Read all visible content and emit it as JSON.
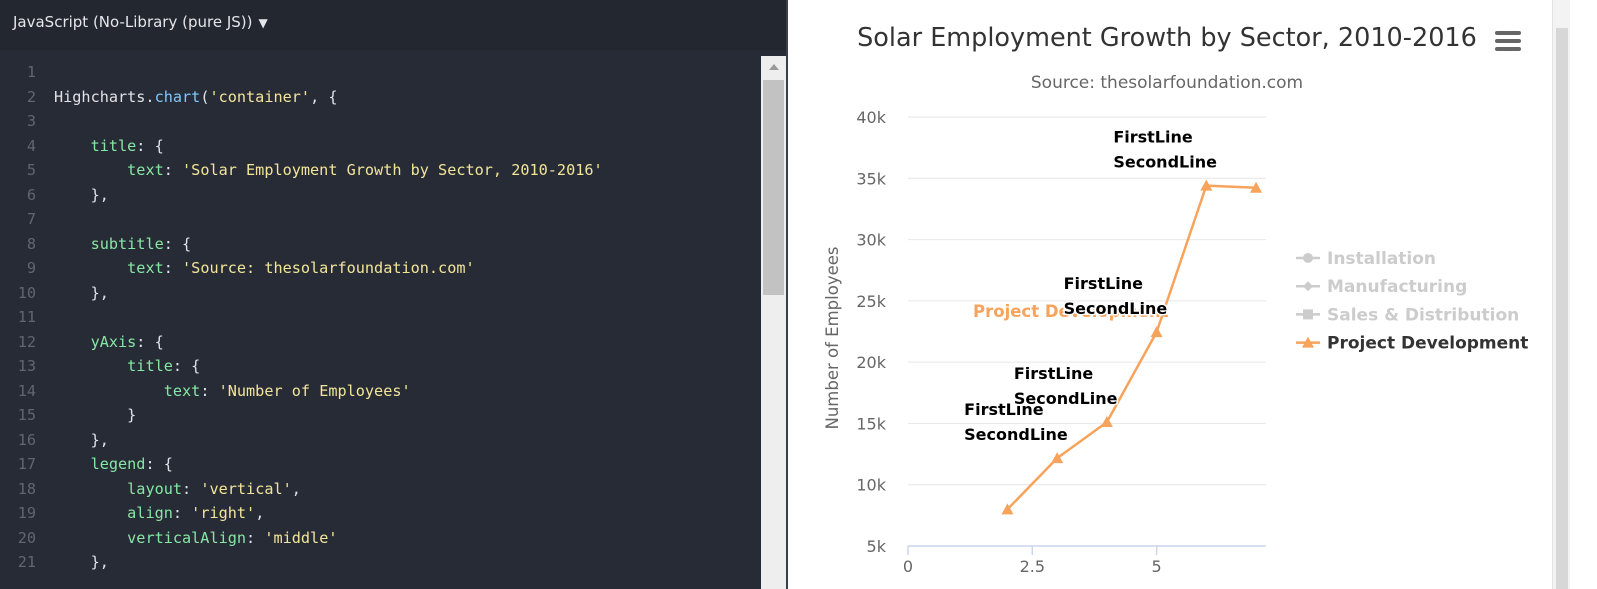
{
  "editor": {
    "language_label": "JavaScript (No-Library (pure JS))",
    "lines": [
      [],
      [
        [
          "pl",
          "Highcharts."
        ],
        [
          "fn",
          "chart"
        ],
        [
          "pl",
          "("
        ],
        [
          "str",
          "'container'"
        ],
        [
          "pl",
          ", {"
        ]
      ],
      [],
      [
        [
          "pl",
          "    "
        ],
        [
          "key",
          "title"
        ],
        [
          "pl",
          ": {"
        ]
      ],
      [
        [
          "pl",
          "        "
        ],
        [
          "key",
          "text"
        ],
        [
          "pl",
          ": "
        ],
        [
          "str",
          "'Solar Employment Growth by Sector, 2010-2016'"
        ]
      ],
      [
        [
          "pl",
          "    },"
        ]
      ],
      [],
      [
        [
          "pl",
          "    "
        ],
        [
          "key",
          "subtitle"
        ],
        [
          "pl",
          ": {"
        ]
      ],
      [
        [
          "pl",
          "        "
        ],
        [
          "key",
          "text"
        ],
        [
          "pl",
          ": "
        ],
        [
          "str",
          "'Source: thesolarfoundation.com'"
        ]
      ],
      [
        [
          "pl",
          "    },"
        ]
      ],
      [],
      [
        [
          "pl",
          "    "
        ],
        [
          "key",
          "yAxis"
        ],
        [
          "pl",
          ": {"
        ]
      ],
      [
        [
          "pl",
          "        "
        ],
        [
          "key",
          "title"
        ],
        [
          "pl",
          ": {"
        ]
      ],
      [
        [
          "pl",
          "            "
        ],
        [
          "key",
          "text"
        ],
        [
          "pl",
          ": "
        ],
        [
          "str",
          "'Number of Employees'"
        ]
      ],
      [
        [
          "pl",
          "        }"
        ]
      ],
      [
        [
          "pl",
          "    },"
        ]
      ],
      [
        [
          "pl",
          "    "
        ],
        [
          "key",
          "legend"
        ],
        [
          "pl",
          ": {"
        ]
      ],
      [
        [
          "pl",
          "        "
        ],
        [
          "key",
          "layout"
        ],
        [
          "pl",
          ": "
        ],
        [
          "str",
          "'vertical'"
        ],
        [
          "pl",
          ","
        ]
      ],
      [
        [
          "pl",
          "        "
        ],
        [
          "key",
          "align"
        ],
        [
          "pl",
          ": "
        ],
        [
          "str",
          "'right'"
        ],
        [
          "pl",
          ","
        ]
      ],
      [
        [
          "pl",
          "        "
        ],
        [
          "key",
          "verticalAlign"
        ],
        [
          "pl",
          ": "
        ],
        [
          "str",
          "'middle'"
        ]
      ],
      [
        [
          "pl",
          "    },"
        ]
      ]
    ]
  },
  "colors": {
    "series_orange": "#f7a35c",
    "legend_hidden": "#cccccc",
    "legend_active": "#333333"
  },
  "chart_data": {
    "type": "line",
    "title": "Solar Employment Growth by Sector, 2010-2016",
    "subtitle": "Source: thesolarfoundation.com",
    "ylabel": "Number of Employees",
    "xlim": [
      0,
      7.2
    ],
    "ylim": [
      5000,
      40000
    ],
    "x_ticks": [
      0,
      2.5,
      5
    ],
    "x_tick_labels": [
      "0",
      "2.5",
      "5"
    ],
    "y_ticks": [
      5000,
      10000,
      15000,
      20000,
      25000,
      30000,
      35000,
      40000
    ],
    "y_tick_labels": [
      "5k",
      "10k",
      "15k",
      "20k",
      "25k",
      "30k",
      "35k",
      "40k"
    ],
    "grid": true,
    "legend_position": "right-middle",
    "legend": [
      {
        "name": "Installation",
        "symbol": "circle",
        "visible": false
      },
      {
        "name": "Manufacturing",
        "symbol": "diamond",
        "visible": false
      },
      {
        "name": "Sales & Distribution",
        "symbol": "square",
        "visible": false
      },
      {
        "name": "Project Development",
        "symbol": "triangle",
        "visible": true
      }
    ],
    "series": [
      {
        "name": "Project Development",
        "x": [
          2,
          3,
          4,
          5,
          6,
          7
        ],
        "values": [
          7988,
          12169,
          15112,
          22452,
          34400,
          34227
        ],
        "series_label": "Project Development"
      }
    ],
    "data_labels": [
      {
        "x": 3,
        "line1": "FirstLine",
        "line2": "SecondLine"
      },
      {
        "x": 4,
        "line1": "FirstLine",
        "line2": "SecondLine"
      },
      {
        "x": 5,
        "line1": "FirstLine",
        "line2": "SecondLine"
      },
      {
        "x": 6,
        "line1": "FirstLine",
        "line2": "SecondLine"
      }
    ]
  }
}
